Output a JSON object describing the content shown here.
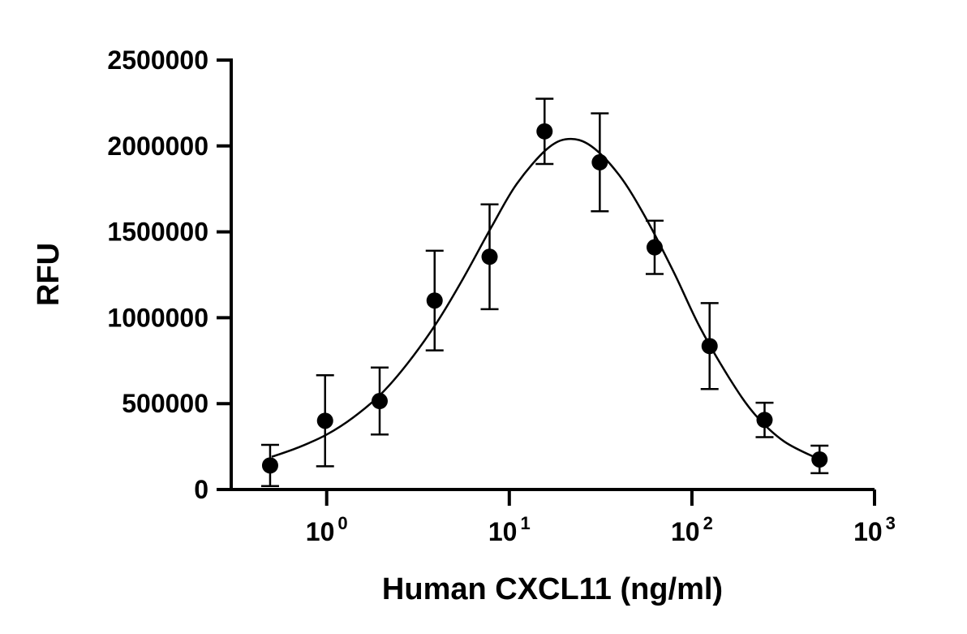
{
  "chart_data": {
    "type": "scatter",
    "xlabel": "Human CXCL11 (ng/ml)",
    "ylabel": "RFU",
    "x_scale": "log",
    "xlim": [
      0.3,
      1000
    ],
    "ylim": [
      0,
      2500000
    ],
    "y_ticks": [
      0,
      500000,
      1000000,
      1500000,
      2000000,
      2500000
    ],
    "x_ticks": [
      {
        "value": 1,
        "base": "10",
        "exp": "0"
      },
      {
        "value": 10,
        "base": "10",
        "exp": "1"
      },
      {
        "value": 100,
        "base": "10",
        "exp": "2"
      },
      {
        "value": 1000,
        "base": "10",
        "exp": "3"
      }
    ],
    "grid": false,
    "series": [
      {
        "x": [
          0.49,
          0.98,
          1.95,
          3.9,
          7.8,
          15.6,
          31.3,
          62.5,
          125,
          250,
          500
        ],
        "y": [
          140000,
          400000,
          515000,
          1100000,
          1355000,
          2085000,
          1905000,
          1410000,
          835000,
          405000,
          175000
        ],
        "err": [
          120000,
          265000,
          195000,
          290000,
          305000,
          190000,
          285000,
          155000,
          250000,
          100000,
          80000
        ]
      }
    ],
    "fit_curve": {
      "type": "log-normal",
      "x": [
        0.5,
        0.7,
        1,
        1.4,
        2,
        2.8,
        4,
        5.6,
        8,
        11,
        16,
        21,
        28,
        40,
        56,
        80,
        110,
        160,
        220,
        320,
        500
      ],
      "y": [
        190000,
        245000,
        320000,
        420000,
        560000,
        740000,
        970000,
        1230000,
        1530000,
        1780000,
        1980000,
        2040000,
        2000000,
        1830000,
        1580000,
        1260000,
        950000,
        650000,
        440000,
        280000,
        175000
      ]
    }
  }
}
